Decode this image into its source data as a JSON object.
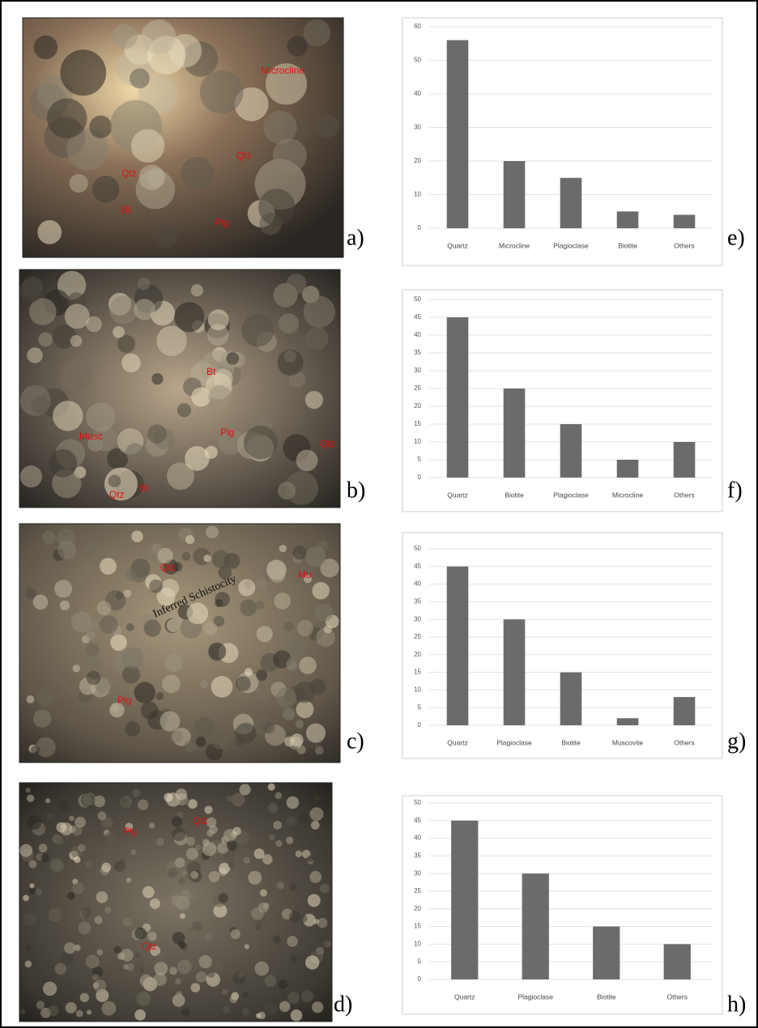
{
  "photos": [
    {
      "panel_label": "a)",
      "annotations": [
        "Microcline",
        "Qtz",
        "Qtz",
        "Bt",
        "Plg"
      ]
    },
    {
      "panel_label": "b)",
      "annotations": [
        "Bt",
        "Plg",
        "Qtz",
        "Musc",
        "Qtz",
        "Bt"
      ]
    },
    {
      "panel_label": "c)",
      "annotations": [
        "Qtz",
        "Inferred Schistocity",
        "Mu",
        "Plg"
      ]
    },
    {
      "panel_label": "d)",
      "annotations": [
        "Plg",
        "Qtz",
        "Qtz"
      ]
    }
  ],
  "chart_data": [
    {
      "type": "bar",
      "panel_label": "e)",
      "categories": [
        "Quartz",
        "Microcline",
        "Plagioclase",
        "Biotite",
        "Others"
      ],
      "values": [
        56,
        20,
        15,
        5,
        4
      ],
      "color": "#6b6b6b",
      "ylim": [
        0,
        60
      ],
      "yticks": [
        0,
        10,
        20,
        30,
        40,
        50,
        60
      ],
      "grid": true
    },
    {
      "type": "bar",
      "panel_label": "f)",
      "categories": [
        "Quartz",
        "Biotite",
        "Plagioclase",
        "Microcline",
        "Others"
      ],
      "values": [
        45,
        25,
        15,
        5,
        10
      ],
      "color": "#6b6b6b",
      "ylim": [
        0,
        50
      ],
      "yticks": [
        0,
        5,
        10,
        15,
        20,
        25,
        30,
        35,
        40,
        45,
        50
      ],
      "grid": true
    },
    {
      "type": "bar",
      "panel_label": "g)",
      "categories": [
        "Quartz",
        "Plagioclase",
        "Biotite",
        "Muscovite",
        "Others"
      ],
      "values": [
        45,
        30,
        15,
        2,
        8
      ],
      "color": "#6b6b6b",
      "ylim": [
        0,
        50
      ],
      "yticks": [
        0,
        5,
        10,
        15,
        20,
        25,
        30,
        35,
        40,
        45,
        50
      ],
      "grid": true
    },
    {
      "type": "bar",
      "panel_label": "h)",
      "categories": [
        "Quartz",
        "Plagioclase",
        "Biotite",
        "Others"
      ],
      "values": [
        45,
        30,
        15,
        10
      ],
      "color": "#6b6b6b",
      "ylim": [
        0,
        50
      ],
      "yticks": [
        0,
        5,
        10,
        15,
        20,
        25,
        30,
        35,
        40,
        45,
        50
      ],
      "grid": true
    }
  ]
}
